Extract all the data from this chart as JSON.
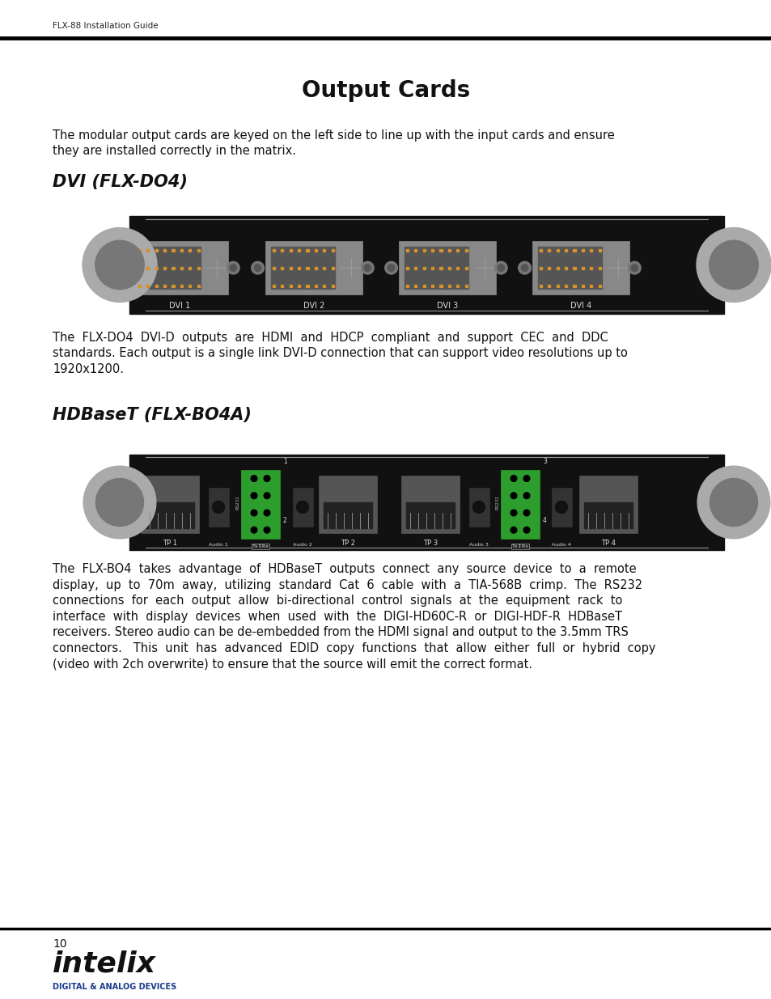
{
  "page_width": 9.54,
  "page_height": 12.35,
  "bg_color": "#ffffff",
  "header_text": "FLX-88 Installation Guide",
  "title": "Output Cards",
  "title_fontsize": 20,
  "intro_text": "The modular output cards are keyed on the left side to line up with the input cards and ensure they are installed correctly in the matrix.",
  "intro_fontsize": 10.5,
  "section1_title": "DVI (FLX-DO4)",
  "section1_title_fontsize": 15,
  "section1_desc_line1": "The  FLX-DO4  DVI-D  outputs  are  HDMI  and  HDCP  compliant  and  support  CEC  and  DDC",
  "section1_desc_line2": "standards. Each output is a single link DVI-D connection that can support video resolutions up to",
  "section1_desc_line3": "1920x1200.",
  "section2_title": "HDBaseT (FLX-BO4A)",
  "section2_title_fontsize": 15,
  "section2_desc_line1": "The  FLX-BO4  takes  advantage  of  HDBaseT  outputs  connect  any  source  device  to  a  remote",
  "section2_desc_line2": "display,  up  to  70m  away,  utilizing  standard  Cat  6  cable  with  a  TIA-568B  crimp.  The  RS232",
  "section2_desc_line3": "connections  for  each  output  allow  bi-directional  control  signals  at  the  equipment  rack  to",
  "section2_desc_line4": "interface  with  display  devices  when  used  with  the  DIGI-HD60C-R  or  DIGI-HDF-R  HDBaseT",
  "section2_desc_line5": "receivers. Stereo audio can be de-embedded from the HDMI signal and output to the 3.5mm TRS",
  "section2_desc_line6": "connectors.   This  unit  has  advanced  EDID  copy  functions  that  allow  either  full  or  hybrid  copy",
  "section2_desc_line7": "(video with 2ch overwrite) to ensure that the source will emit the correct format.",
  "page_number": "10",
  "logo_color": "#1a3a8c",
  "dvi_labels": [
    "DVI 1",
    "DVI 2",
    "DVI 3",
    "DVI 4"
  ],
  "hdbaset_labels": [
    "TP 1",
    "TP 2",
    "TP 3",
    "TP 4"
  ],
  "hdbaset_audio_labels": [
    "Audio 1",
    "Audio 2",
    "Audio 3",
    "Audio 4"
  ],
  "card_bg": "#111111",
  "bracket_color": "#999999",
  "connector_face": "#888888",
  "connector_inner": "#555555",
  "pin_color": "#d4922a",
  "screw_outer": "#aaaaaa",
  "screw_inner": "#777777",
  "green_block": "#2d9e2d",
  "text_light": "#cccccc",
  "text_body": "#111111"
}
